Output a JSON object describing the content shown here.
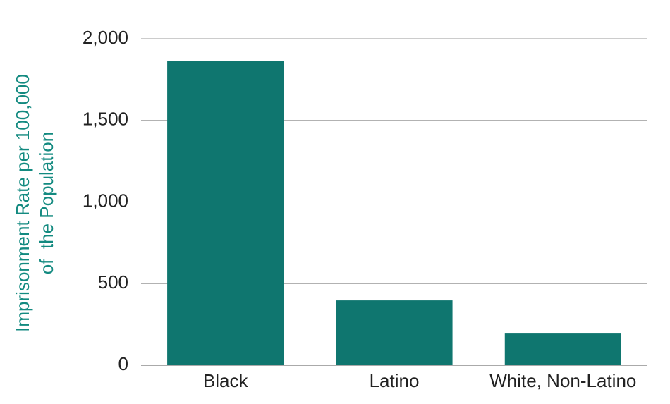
{
  "chart_data": {
    "type": "bar",
    "y_label": [
      "Imprisonment Rate per 100,000",
      "of  the Population"
    ],
    "categories": [
      "Black",
      "Latino",
      "White, Non-Latino"
    ],
    "values": [
      1866,
      397,
      194
    ],
    "color": "#0f766f",
    "ylim": [
      0,
      2000
    ],
    "yticks": [
      0,
      500,
      {
        "value": 1000,
        "label": "1,000"
      },
      {
        "value": 1500,
        "label": "1,500"
      },
      {
        "value": 2000,
        "label": "2,000"
      }
    ],
    "grid": true
  }
}
